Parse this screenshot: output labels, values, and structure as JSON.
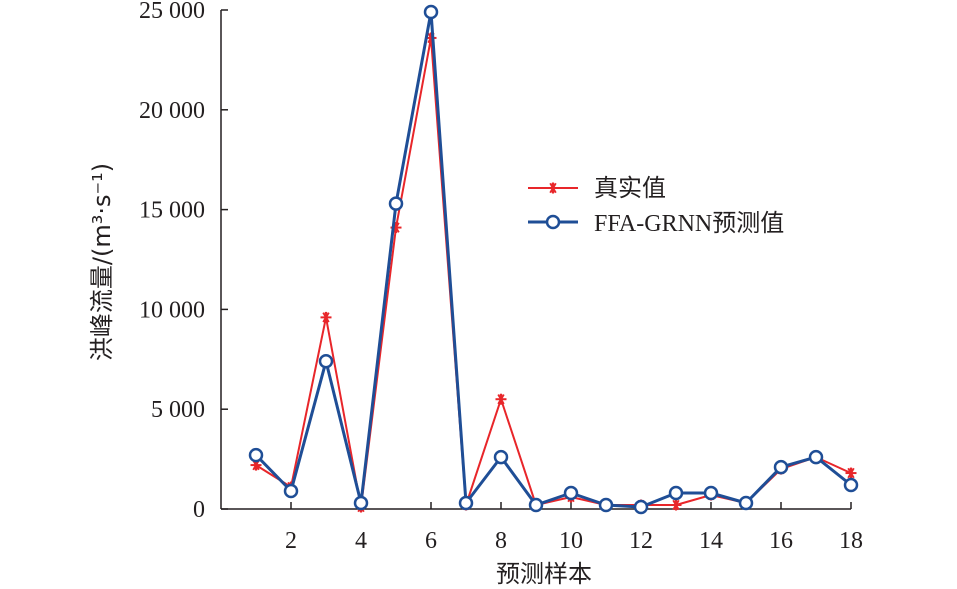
{
  "chart_data": {
    "type": "line",
    "xlabel": "预测样本",
    "ylabel": "洪峰流量/(m³·s⁻¹)",
    "x": [
      1,
      2,
      3,
      4,
      5,
      6,
      7,
      8,
      9,
      10,
      11,
      12,
      13,
      14,
      15,
      16,
      17,
      18
    ],
    "xlim": [
      0,
      18
    ],
    "ylim": [
      0,
      25000
    ],
    "xticks": [
      2,
      4,
      6,
      8,
      10,
      12,
      14,
      16,
      18
    ],
    "yticks": [
      0,
      5000,
      10000,
      15000,
      20000,
      25000
    ],
    "xtick_labels": [
      "2",
      "4",
      "6",
      "8",
      "10",
      "12",
      "14",
      "16",
      "18"
    ],
    "ytick_labels": [
      "0",
      "5 000",
      "10 000",
      "15 000",
      "20 000",
      "25 000"
    ],
    "grid": false,
    "legend_position": "center-right",
    "series": [
      {
        "name": "真实值",
        "color": "#e8262a",
        "marker": "asterisk",
        "values": [
          2200,
          1100,
          9600,
          100,
          14100,
          23600,
          200,
          5500,
          200,
          600,
          200,
          200,
          200,
          700,
          300,
          2000,
          2600,
          1800
        ]
      },
      {
        "name": "FFA-GRNN预测值",
        "color": "#1f4e96",
        "marker": "circle",
        "values": [
          2700,
          900,
          7400,
          300,
          15300,
          24900,
          300,
          2600,
          200,
          800,
          200,
          100,
          800,
          800,
          300,
          2100,
          2600,
          1200
        ]
      }
    ]
  }
}
